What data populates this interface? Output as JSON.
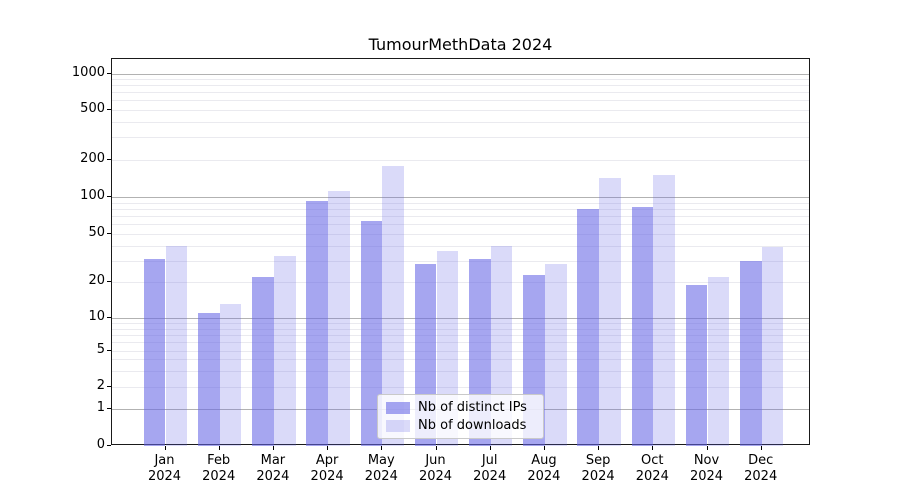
{
  "title": "TumourMethData 2024",
  "legend": {
    "items": [
      {
        "label": "Nb of distinct IPs",
        "color": "rgba(102,102,230,0.58)"
      },
      {
        "label": "Nb of downloads",
        "color": "rgba(102,102,230,0.24)"
      }
    ]
  },
  "colors": {
    "series_dark": "rgba(102,102,230,0.58)",
    "series_light": "rgba(102,102,230,0.24)",
    "grid_major": "#b2b2b2",
    "grid_minor": "#eaeaef",
    "axis": "#1a1a1a"
  },
  "chart_data": {
    "type": "bar",
    "title": "TumourMethData 2024",
    "categories": [
      "Jan 2024",
      "Feb 2024",
      "Mar 2024",
      "Apr 2024",
      "May 2024",
      "Jun 2024",
      "Jul 2024",
      "Aug 2024",
      "Sep 2024",
      "Oct 2024",
      "Nov 2024",
      "Dec 2024"
    ],
    "series": [
      {
        "name": "Nb of distinct IPs",
        "values": [
          31,
          11,
          22,
          93,
          64,
          28,
          31,
          23,
          80,
          83,
          19,
          30
        ]
      },
      {
        "name": "Nb of downloads",
        "values": [
          40,
          13,
          33,
          112,
          176,
          36,
          40,
          28,
          142,
          150,
          22,
          39
        ]
      }
    ],
    "yscale": "symlog",
    "ylabel": "",
    "xlabel": "",
    "y_ticks": [
      1000,
      500,
      200,
      100,
      50,
      20,
      10,
      5,
      2,
      1,
      0
    ],
    "y_minor_gridlines": [
      2,
      3,
      4,
      5,
      6,
      7,
      8,
      9,
      20,
      30,
      40,
      50,
      60,
      70,
      80,
      90,
      200,
      300,
      400,
      500,
      600,
      700,
      800,
      900
    ],
    "y_major_gridlines": [
      1,
      10,
      100,
      1000
    ],
    "ylim": [
      0,
      1300
    ],
    "grid": true,
    "legend_position": "lower center"
  }
}
